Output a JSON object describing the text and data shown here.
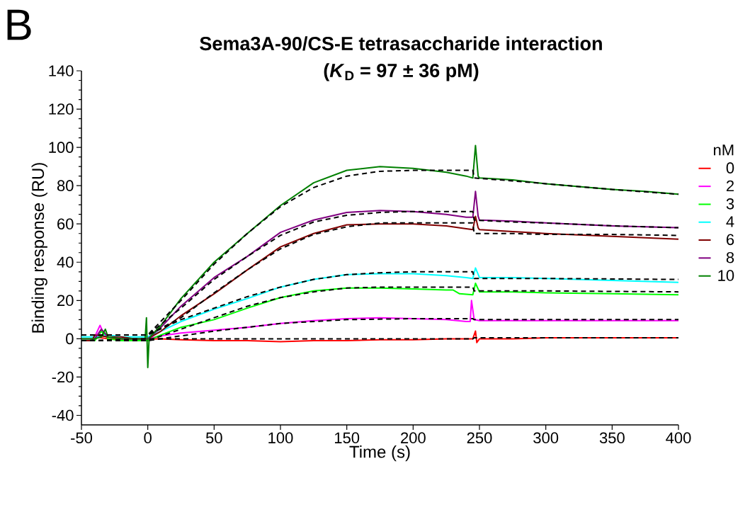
{
  "chart_data": {
    "type": "line",
    "title": "Sema3A-90/CS-E tetrasaccharide interaction",
    "subtitle": "(*K*$_{D}$ = 97 ± 36 pM)",
    "xlabel": "Time (s)",
    "ylabel": "Binding response (RU)",
    "legend_title": "nM",
    "annotations": [
      "B"
    ],
    "xlim": [
      -50,
      400
    ],
    "ylim": [
      -45,
      140
    ],
    "xticks": [
      -50,
      0,
      50,
      100,
      150,
      200,
      250,
      300,
      350,
      400
    ],
    "yticks": [
      -40,
      -20,
      0,
      20,
      40,
      60,
      80,
      100,
      120,
      140
    ],
    "grid": false,
    "legend": "right",
    "marker": "none",
    "series": [
      {
        "name": "0",
        "color": "#ff0000",
        "line_style": "solid",
        "x": [
          -42,
          -40,
          -30,
          -20,
          -10,
          0,
          10,
          25,
          50,
          75,
          100,
          125,
          150,
          175,
          200,
          225,
          245,
          247,
          248,
          250,
          275,
          300,
          350,
          400
        ],
        "values": [
          -1,
          1,
          0,
          0,
          0,
          0,
          0,
          -0.5,
          -1,
          -1,
          -1.5,
          -1,
          -1,
          -0.5,
          -0.5,
          0,
          0,
          4,
          -2,
          0,
          0,
          0.5,
          0.5,
          0.5
        ]
      },
      {
        "name": "2",
        "color": "#ff00ff",
        "line_style": "solid",
        "x": [
          -40,
          -36,
          -34,
          -30,
          -20,
          -10,
          0,
          10,
          25,
          50,
          75,
          100,
          125,
          150,
          175,
          200,
          225,
          240,
          243,
          244,
          246,
          250,
          275,
          300,
          350,
          400
        ],
        "values": [
          1,
          7,
          4,
          1,
          0,
          0,
          0,
          1.5,
          3,
          4.5,
          6,
          8,
          9.5,
          10.5,
          11,
          10.5,
          10,
          9,
          9,
          20,
          10,
          9.5,
          9.5,
          9.5,
          9.5,
          9.5
        ]
      },
      {
        "name": "3",
        "color": "#00ff00",
        "line_style": "solid",
        "x": [
          -50,
          -40,
          -35,
          -30,
          -20,
          -10,
          0,
          10,
          25,
          50,
          75,
          100,
          125,
          150,
          175,
          200,
          225,
          230,
          235,
          245,
          247,
          250,
          275,
          300,
          350,
          400
        ],
        "values": [
          -1,
          -1,
          4,
          0,
          -1,
          -1,
          -1,
          2,
          6,
          10,
          16,
          21.5,
          25,
          26.5,
          26.5,
          26,
          25.5,
          25.5,
          23.5,
          23,
          29,
          24.5,
          24.5,
          24,
          23.5,
          23
        ]
      },
      {
        "name": "4",
        "color": "#00ffff",
        "line_style": "solid",
        "x": [
          -50,
          -40,
          -30,
          -20,
          -10,
          0,
          10,
          25,
          50,
          75,
          100,
          125,
          150,
          175,
          200,
          225,
          240,
          245,
          247,
          250,
          275,
          300,
          350,
          400
        ],
        "values": [
          1,
          1,
          2,
          1,
          1,
          1,
          4,
          9,
          15.5,
          21,
          27,
          31,
          33.5,
          34,
          34,
          33,
          32,
          31.5,
          37,
          32,
          32,
          31.5,
          30.5,
          29.5
        ]
      },
      {
        "name": "6",
        "color": "#800000",
        "line_style": "solid",
        "x": [
          -50,
          -42,
          -40,
          -30,
          -20,
          -10,
          0,
          10,
          25,
          50,
          75,
          100,
          125,
          150,
          175,
          200,
          225,
          240,
          245,
          247,
          249,
          250,
          275,
          300,
          350,
          400
        ],
        "values": [
          -1,
          -1,
          2,
          1,
          1,
          0,
          0,
          4,
          12,
          23.5,
          36,
          48,
          55,
          59.5,
          60,
          60,
          59,
          57.5,
          57,
          64,
          58,
          57,
          56,
          55,
          53.5,
          52
        ]
      },
      {
        "name": "8",
        "color": "#800080",
        "line_style": "solid",
        "x": [
          -50,
          -40,
          -35,
          -30,
          -20,
          -10,
          0,
          10,
          25,
          50,
          75,
          100,
          125,
          150,
          175,
          200,
          225,
          240,
          245,
          247,
          249,
          250,
          275,
          300,
          350,
          400
        ],
        "values": [
          0,
          0,
          5,
          1,
          0,
          0,
          0,
          6,
          17,
          32,
          43,
          55.6,
          62,
          66,
          67,
          66.5,
          65,
          63.5,
          63.5,
          77,
          64,
          62,
          61.5,
          60.5,
          59,
          58
        ]
      },
      {
        "name": "10",
        "color": "#008000",
        "line_style": "solid",
        "x": [
          -50,
          -40,
          -35,
          -32,
          -30,
          -20,
          -10,
          -2,
          -1,
          0,
          1,
          3,
          10,
          25,
          50,
          75,
          100,
          125,
          150,
          175,
          200,
          225,
          240,
          245,
          247,
          249,
          250,
          275,
          300,
          325,
          350,
          375,
          400
        ],
        "values": [
          0,
          0,
          1,
          5,
          1,
          0,
          0,
          0,
          11,
          -15,
          0,
          2,
          7,
          21,
          40,
          55,
          69.6,
          81.5,
          88,
          90,
          89,
          87,
          85,
          84,
          101,
          85,
          84,
          83,
          81,
          79.5,
          78,
          77,
          75.5
        ]
      },
      {
        "color": "#000000",
        "line_style": "dashed",
        "x": [
          -50,
          0,
          245,
          246,
          400
        ],
        "values": [
          -1,
          0,
          0,
          0.5,
          0.5
        ]
      },
      {
        "color": "#000000",
        "line_style": "dashed",
        "x": [
          -50,
          0,
          50,
          100,
          150,
          200,
          245,
          246,
          300,
          400
        ],
        "values": [
          -1,
          -1,
          4,
          8,
          10,
          10.5,
          10.5,
          10,
          10,
          10
        ]
      },
      {
        "color": "#000000",
        "line_style": "dashed",
        "x": [
          -50,
          0,
          25,
          50,
          75,
          100,
          125,
          150,
          175,
          200,
          245,
          246,
          300,
          400
        ],
        "values": [
          -1,
          -1,
          5,
          11,
          17,
          21.5,
          24.5,
          26.5,
          27,
          27,
          27,
          25,
          25,
          24.5
        ]
      },
      {
        "color": "#000000",
        "line_style": "dashed",
        "x": [
          -50,
          0,
          25,
          50,
          75,
          100,
          125,
          150,
          175,
          200,
          245,
          246,
          300,
          400
        ],
        "values": [
          2,
          2,
          10,
          16,
          22,
          27,
          31,
          33.5,
          34.5,
          35,
          35,
          31.5,
          31.5,
          31
        ]
      },
      {
        "color": "#000000",
        "line_style": "dashed",
        "x": [
          -50,
          0,
          25,
          50,
          75,
          100,
          125,
          150,
          175,
          200,
          245,
          246,
          275,
          300,
          350,
          400
        ],
        "values": [
          2,
          2,
          11,
          24,
          36,
          47,
          54.5,
          58.5,
          60.5,
          60.5,
          60.5,
          55,
          55,
          54.5,
          54.5,
          54
        ]
      },
      {
        "color": "#000000",
        "line_style": "dashed",
        "x": [
          -50,
          0,
          25,
          50,
          75,
          100,
          125,
          150,
          175,
          200,
          245,
          246,
          275,
          300,
          350,
          400
        ],
        "values": [
          2,
          2,
          16,
          31,
          43,
          54,
          61,
          64.5,
          66,
          66.5,
          66.5,
          62,
          61,
          60.5,
          59,
          58
        ]
      },
      {
        "color": "#000000",
        "line_style": "dashed",
        "x": [
          -50,
          0,
          25,
          50,
          75,
          100,
          125,
          150,
          175,
          200,
          245,
          246,
          275,
          300,
          350,
          400
        ],
        "values": [
          2,
          2,
          20,
          39,
          55,
          69,
          79,
          85,
          87.5,
          88,
          88,
          84,
          82.5,
          81,
          78,
          75.5
        ]
      }
    ]
  }
}
